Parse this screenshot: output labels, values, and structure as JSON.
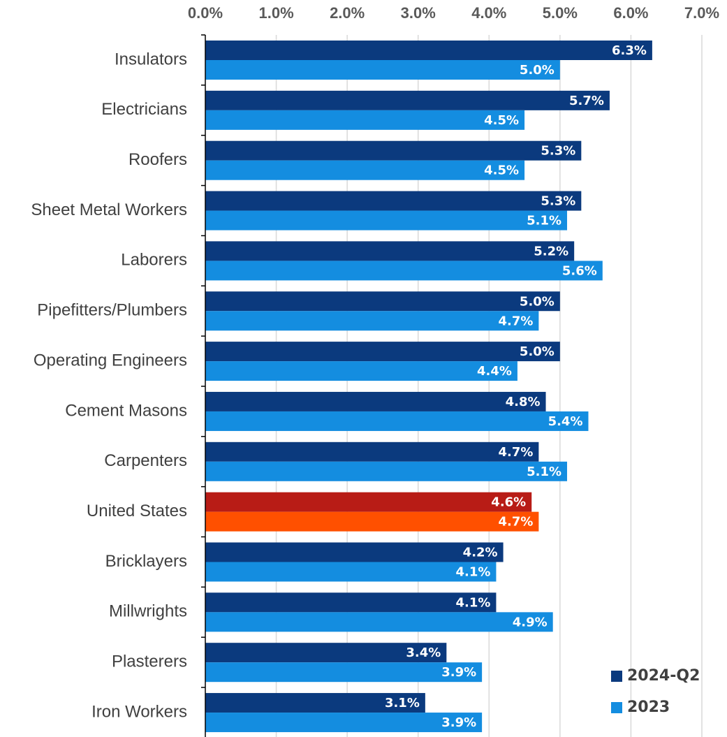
{
  "chart_data": {
    "type": "hbar",
    "categories": [
      "Insulators",
      "Electricians",
      "Roofers",
      "Sheet Metal Workers",
      "Laborers",
      "Pipefitters/Plumbers",
      "Operating Engineers",
      "Cement Masons",
      "Carpenters",
      "United States",
      "Bricklayers",
      "Millwrights",
      "Plasterers",
      "Iron Workers"
    ],
    "series": [
      {
        "name": "2024-Q2",
        "color": "#0b3a7e",
        "colors": [
          "#0b3a7e",
          "#0b3a7e",
          "#0b3a7e",
          "#0b3a7e",
          "#0b3a7e",
          "#0b3a7e",
          "#0b3a7e",
          "#0b3a7e",
          "#0b3a7e",
          "#b81c16",
          "#0b3a7e",
          "#0b3a7e",
          "#0b3a7e",
          "#0b3a7e"
        ],
        "values": [
          6.3,
          5.7,
          5.3,
          5.3,
          5.2,
          5.0,
          5.0,
          4.8,
          4.7,
          4.6,
          4.2,
          4.1,
          3.4,
          3.1
        ],
        "value_labels": [
          "6.3%",
          "5.7%",
          "5.3%",
          "5.3%",
          "5.2%",
          "5.0%",
          "5.0%",
          "4.8%",
          "4.7%",
          "4.6%",
          "4.2%",
          "4.1%",
          "3.4%",
          "3.1%"
        ]
      },
      {
        "name": "2023",
        "color": "#148de0",
        "colors": [
          "#148de0",
          "#148de0",
          "#148de0",
          "#148de0",
          "#148de0",
          "#148de0",
          "#148de0",
          "#148de0",
          "#148de0",
          "#ff5000",
          "#148de0",
          "#148de0",
          "#148de0",
          "#148de0"
        ],
        "values": [
          5.0,
          4.5,
          4.5,
          5.1,
          5.6,
          4.7,
          4.4,
          5.4,
          5.1,
          4.7,
          4.1,
          4.9,
          3.9,
          3.9
        ],
        "value_labels": [
          "5.0%",
          "4.5%",
          "4.5%",
          "5.1%",
          "5.6%",
          "4.7%",
          "4.4%",
          "5.4%",
          "5.1%",
          "4.7%",
          "4.1%",
          "4.9%",
          "3.9%",
          "3.9%"
        ]
      }
    ],
    "xlim": [
      0,
      7
    ],
    "xticks": [
      {
        "value": 0,
        "label": "0.0%"
      },
      {
        "value": 1,
        "label": "1.0%"
      },
      {
        "value": 2,
        "label": "2.0%"
      },
      {
        "value": 3,
        "label": "3.0%"
      },
      {
        "value": 4,
        "label": "4.0%"
      },
      {
        "value": 5,
        "label": "5.0%"
      },
      {
        "value": 6,
        "label": "6.0%"
      },
      {
        "value": 7,
        "label": "7.0%"
      }
    ],
    "grid": true,
    "legend": "lower right"
  }
}
